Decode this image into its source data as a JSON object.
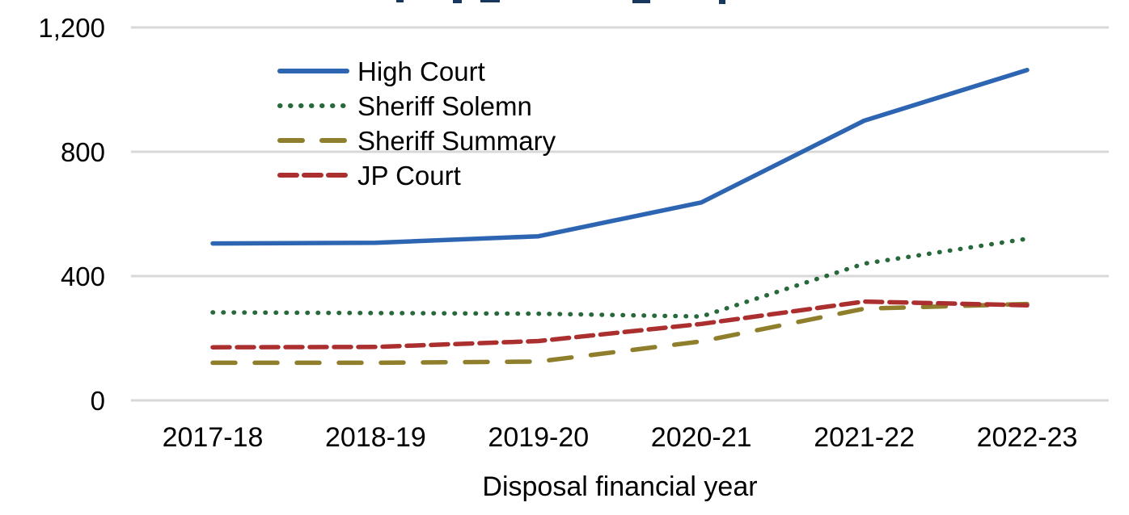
{
  "chart_data": {
    "type": "line",
    "xlabel": "Disposal financial year",
    "ylabel": "",
    "categories": [
      "2017-18",
      "2018-19",
      "2019-20",
      "2020-21",
      "2021-22",
      "2022-23"
    ],
    "series": [
      {
        "name": "High Court",
        "values": [
          505,
          507,
          528,
          637,
          900,
          1063
        ],
        "color": "#2D65B2",
        "line_style": "solid"
      },
      {
        "name": "Sheriff Solemn",
        "values": [
          283,
          281,
          279,
          270,
          440,
          520
        ],
        "color": "#28693C",
        "line_style": "dotted"
      },
      {
        "name": "Sheriff Summary",
        "values": [
          121,
          121,
          125,
          190,
          295,
          310
        ],
        "color": "#8F7E2B",
        "line_style": "long-dash"
      },
      {
        "name": "JP Court",
        "values": [
          171,
          172,
          191,
          246,
          318,
          306
        ],
        "color": "#AC2F2F",
        "line_style": "dash"
      }
    ],
    "ylim": [
      0,
      1200
    ],
    "yticks": [
      {
        "value": 0,
        "label": "0"
      },
      {
        "value": 400,
        "label": "400"
      },
      {
        "value": 800,
        "label": "800"
      },
      {
        "value": 1200,
        "label": "1,200"
      }
    ],
    "grid": true,
    "gridline_color": "#D8D8D8",
    "text_color": "#000000",
    "legend_position": "upper-left-inside"
  }
}
